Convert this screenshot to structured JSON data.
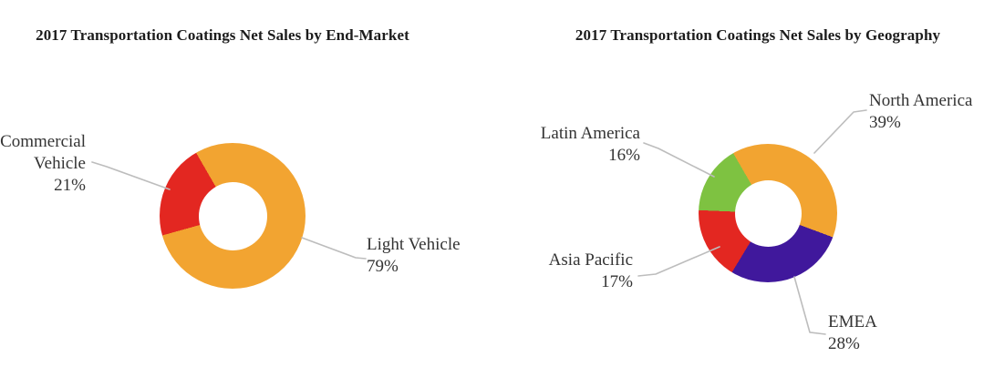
{
  "page": {
    "background_color": "#ffffff",
    "leader_line_color": "#bdbdbd"
  },
  "chart_data": [
    {
      "type": "pie",
      "variant": "donut",
      "title": "2017 Transportation Coatings Net Sales by End-Market",
      "series": [
        {
          "name": "Light Vehicle",
          "value": 79,
          "display": "79%",
          "color": "#F2A431"
        },
        {
          "name": "Commercial Vehicle",
          "value": 21,
          "display": "21%",
          "color": "#E32721"
        }
      ],
      "start_angle_deg": -30,
      "hole_ratio": 0.47,
      "legend_position": "callouts-with-leader-lines",
      "grid": false
    },
    {
      "type": "pie",
      "variant": "donut",
      "title": "2017 Transportation Coatings Net Sales by Geography",
      "series": [
        {
          "name": "North America",
          "value": 39,
          "display": "39%",
          "color": "#F2A431"
        },
        {
          "name": "EMEA",
          "value": 28,
          "display": "28%",
          "color": "#40189C"
        },
        {
          "name": "Asia Pacific",
          "value": 17,
          "display": "17%",
          "color": "#E32721"
        },
        {
          "name": "Latin America",
          "value": 16,
          "display": "16%",
          "color": "#7EC241"
        }
      ],
      "start_angle_deg": -30,
      "hole_ratio": 0.48,
      "legend_position": "callouts-with-leader-lines",
      "grid": false
    }
  ]
}
